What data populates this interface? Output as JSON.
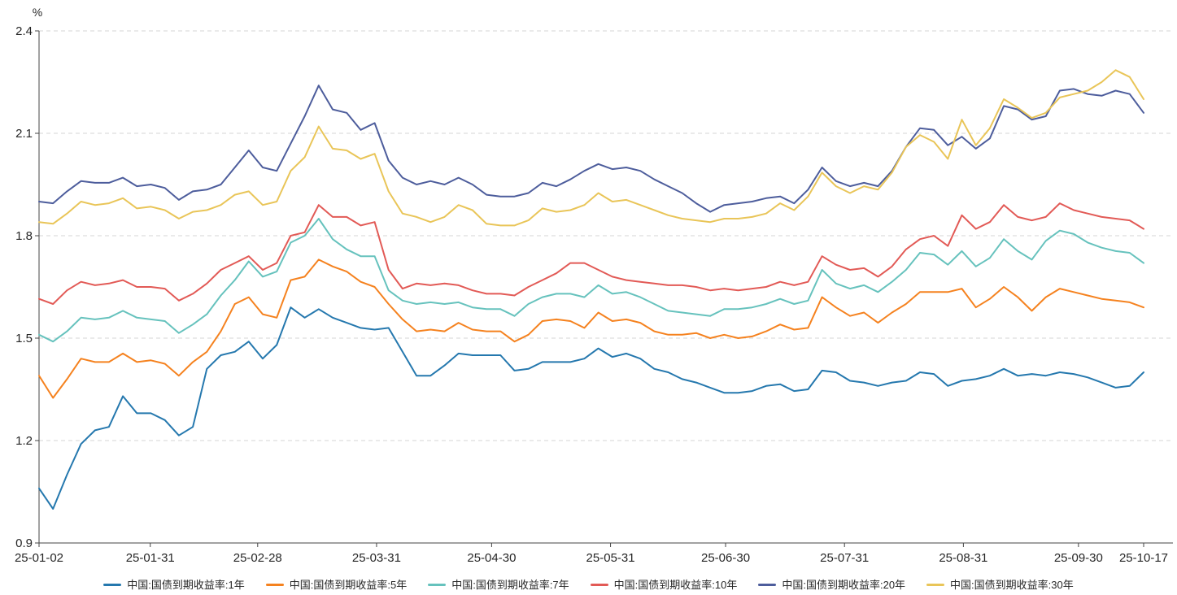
{
  "chart_data": {
    "type": "line",
    "title": "",
    "ylabel": "%",
    "ylim": [
      0.9,
      2.4
    ],
    "y_ticks": [
      2.4,
      2.1,
      1.8,
      1.5,
      1.2,
      0.9
    ],
    "x_tick_labels": [
      "25-01-02",
      "25-01-31",
      "25-02-28",
      "25-03-31",
      "25-04-30",
      "25-05-31",
      "25-06-30",
      "25-07-31",
      "25-08-31",
      "25-09-30",
      "25-10-17"
    ],
    "x_tick_days": [
      0,
      29,
      57,
      88,
      118,
      149,
      179,
      210,
      241,
      271,
      288
    ],
    "x_range_days": [
      0,
      288
    ],
    "grid": "horizontal-dashed",
    "legend_position": "bottom",
    "axis_color": "#444444",
    "grid_color": "#d6d6d6",
    "series": [
      {
        "name": "中国:国债到期收益率:1年",
        "color": "#2578ae",
        "values": [
          1.06,
          1.0,
          1.1,
          1.19,
          1.23,
          1.24,
          1.33,
          1.28,
          1.28,
          1.26,
          1.215,
          1.24,
          1.41,
          1.45,
          1.46,
          1.49,
          1.44,
          1.48,
          1.59,
          1.56,
          1.585,
          1.56,
          1.545,
          1.53,
          1.525,
          1.53,
          1.46,
          1.39,
          1.39,
          1.42,
          1.455,
          1.45,
          1.45,
          1.45,
          1.405,
          1.41,
          1.43,
          1.43,
          1.43,
          1.44,
          1.47,
          1.445,
          1.455,
          1.44,
          1.41,
          1.4,
          1.38,
          1.37,
          1.355,
          1.34,
          1.34,
          1.345,
          1.36,
          1.365,
          1.345,
          1.35,
          1.405,
          1.4,
          1.375,
          1.37,
          1.36,
          1.37,
          1.375,
          1.4,
          1.395,
          1.36,
          1.375,
          1.38,
          1.39,
          1.41,
          1.39,
          1.395,
          1.39,
          1.4,
          1.395,
          1.385,
          1.37,
          1.355,
          1.36,
          1.4
        ]
      },
      {
        "name": "中国:国债到期收益率:5年",
        "color": "#f5821f",
        "values": [
          1.39,
          1.325,
          1.38,
          1.44,
          1.43,
          1.43,
          1.455,
          1.43,
          1.435,
          1.425,
          1.39,
          1.43,
          1.46,
          1.52,
          1.6,
          1.62,
          1.57,
          1.56,
          1.67,
          1.68,
          1.73,
          1.71,
          1.695,
          1.665,
          1.65,
          1.6,
          1.555,
          1.52,
          1.525,
          1.52,
          1.545,
          1.525,
          1.52,
          1.52,
          1.49,
          1.51,
          1.55,
          1.555,
          1.55,
          1.53,
          1.575,
          1.55,
          1.555,
          1.545,
          1.52,
          1.51,
          1.51,
          1.515,
          1.5,
          1.51,
          1.5,
          1.505,
          1.52,
          1.54,
          1.525,
          1.53,
          1.62,
          1.59,
          1.565,
          1.575,
          1.545,
          1.575,
          1.6,
          1.635,
          1.635,
          1.635,
          1.645,
          1.59,
          1.615,
          1.65,
          1.62,
          1.58,
          1.62,
          1.645,
          1.635,
          1.625,
          1.615,
          1.61,
          1.605,
          1.59
        ]
      },
      {
        "name": "中国:国债到期收益率:7年",
        "color": "#66c2bd",
        "values": [
          1.51,
          1.49,
          1.52,
          1.56,
          1.555,
          1.56,
          1.58,
          1.56,
          1.555,
          1.55,
          1.515,
          1.54,
          1.57,
          1.625,
          1.67,
          1.725,
          1.68,
          1.695,
          1.78,
          1.8,
          1.85,
          1.79,
          1.76,
          1.74,
          1.74,
          1.64,
          1.61,
          1.6,
          1.605,
          1.6,
          1.605,
          1.59,
          1.585,
          1.585,
          1.565,
          1.6,
          1.62,
          1.63,
          1.63,
          1.62,
          1.655,
          1.63,
          1.635,
          1.62,
          1.6,
          1.58,
          1.575,
          1.57,
          1.565,
          1.585,
          1.585,
          1.59,
          1.6,
          1.615,
          1.6,
          1.61,
          1.7,
          1.66,
          1.645,
          1.655,
          1.635,
          1.665,
          1.7,
          1.75,
          1.745,
          1.715,
          1.755,
          1.71,
          1.735,
          1.79,
          1.755,
          1.73,
          1.785,
          1.815,
          1.805,
          1.78,
          1.765,
          1.755,
          1.75,
          1.72
        ]
      },
      {
        "name": "中国:国债到期收益率:10年",
        "color": "#e25a56",
        "values": [
          1.615,
          1.6,
          1.64,
          1.665,
          1.655,
          1.66,
          1.67,
          1.65,
          1.65,
          1.645,
          1.61,
          1.63,
          1.66,
          1.7,
          1.72,
          1.74,
          1.7,
          1.72,
          1.8,
          1.81,
          1.89,
          1.855,
          1.855,
          1.83,
          1.84,
          1.7,
          1.645,
          1.66,
          1.655,
          1.66,
          1.655,
          1.64,
          1.63,
          1.63,
          1.625,
          1.65,
          1.67,
          1.69,
          1.72,
          1.72,
          1.7,
          1.68,
          1.67,
          1.665,
          1.66,
          1.655,
          1.655,
          1.65,
          1.64,
          1.645,
          1.64,
          1.645,
          1.65,
          1.665,
          1.655,
          1.665,
          1.74,
          1.715,
          1.7,
          1.705,
          1.68,
          1.71,
          1.76,
          1.79,
          1.8,
          1.77,
          1.86,
          1.82,
          1.84,
          1.89,
          1.855,
          1.845,
          1.855,
          1.895,
          1.875,
          1.865,
          1.855,
          1.85,
          1.845,
          1.82
        ]
      },
      {
        "name": "中国:国债到期收益率:20年",
        "color": "#4d5d9c",
        "values": [
          1.9,
          1.895,
          1.93,
          1.96,
          1.955,
          1.955,
          1.97,
          1.945,
          1.95,
          1.94,
          1.905,
          1.93,
          1.935,
          1.95,
          2.0,
          2.05,
          2.0,
          1.99,
          2.07,
          2.15,
          2.24,
          2.17,
          2.16,
          2.11,
          2.13,
          2.02,
          1.97,
          1.95,
          1.96,
          1.95,
          1.97,
          1.95,
          1.92,
          1.915,
          1.915,
          1.925,
          1.955,
          1.945,
          1.965,
          1.99,
          2.01,
          1.995,
          2.0,
          1.99,
          1.965,
          1.945,
          1.925,
          1.895,
          1.87,
          1.89,
          1.895,
          1.9,
          1.91,
          1.915,
          1.895,
          1.935,
          2.0,
          1.96,
          1.945,
          1.955,
          1.945,
          1.99,
          2.06,
          2.115,
          2.11,
          2.065,
          2.09,
          2.055,
          2.085,
          2.18,
          2.17,
          2.14,
          2.15,
          2.225,
          2.23,
          2.215,
          2.21,
          2.225,
          2.215,
          2.16
        ]
      },
      {
        "name": "中国:国债到期收益率:30年",
        "color": "#e9c558",
        "values": [
          1.84,
          1.835,
          1.865,
          1.9,
          1.89,
          1.895,
          1.91,
          1.88,
          1.885,
          1.875,
          1.85,
          1.87,
          1.875,
          1.89,
          1.92,
          1.93,
          1.89,
          1.9,
          1.99,
          2.03,
          2.12,
          2.055,
          2.05,
          2.025,
          2.04,
          1.93,
          1.865,
          1.855,
          1.84,
          1.855,
          1.89,
          1.875,
          1.835,
          1.83,
          1.83,
          1.845,
          1.88,
          1.87,
          1.875,
          1.89,
          1.925,
          1.9,
          1.905,
          1.89,
          1.875,
          1.86,
          1.85,
          1.845,
          1.84,
          1.85,
          1.85,
          1.855,
          1.865,
          1.895,
          1.875,
          1.915,
          1.985,
          1.945,
          1.925,
          1.945,
          1.935,
          1.985,
          2.06,
          2.095,
          2.075,
          2.025,
          2.14,
          2.065,
          2.115,
          2.2,
          2.175,
          2.145,
          2.16,
          2.205,
          2.215,
          2.225,
          2.25,
          2.285,
          2.265,
          2.2
        ]
      }
    ]
  }
}
